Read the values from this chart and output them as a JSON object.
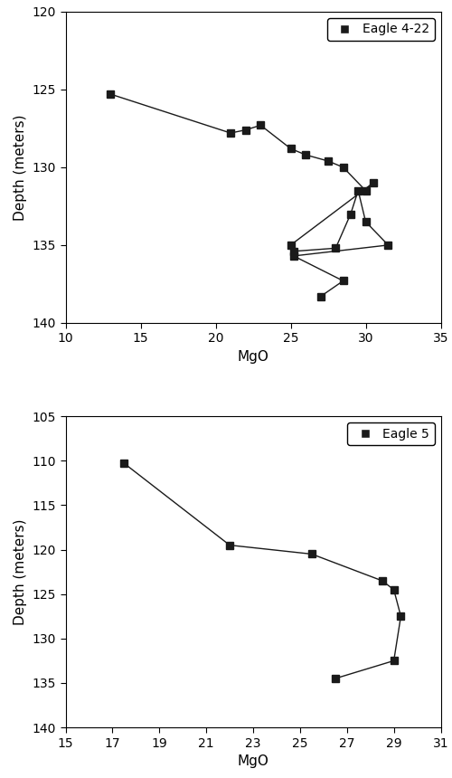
{
  "eagle422": {
    "label": "Eagle 4-22",
    "mgo_seq": [
      13.0,
      21.0,
      22.0,
      23.0,
      25.0,
      26.0,
      27.5,
      28.5,
      30.0,
      30.5,
      25.0,
      25.2,
      28.0,
      29.0,
      29.5,
      30.0,
      31.5,
      25.2,
      28.5,
      27.0
    ],
    "dep_seq": [
      125.3,
      127.8,
      127.6,
      127.3,
      128.8,
      129.2,
      129.6,
      130.0,
      131.5,
      131.0,
      135.0,
      135.4,
      135.2,
      133.0,
      131.5,
      133.5,
      135.0,
      135.7,
      137.3,
      138.3
    ],
    "xlim": [
      10,
      35
    ],
    "ylim": [
      140,
      120
    ],
    "xticks": [
      10,
      15,
      20,
      25,
      30,
      35
    ],
    "yticks": [
      120,
      125,
      130,
      135,
      140
    ]
  },
  "eagle5": {
    "label": "Eagle 5",
    "mgo_seq": [
      17.5,
      22.0,
      25.5,
      28.5,
      29.0,
      29.3,
      29.0,
      26.5
    ],
    "dep_seq": [
      110.3,
      119.5,
      120.5,
      123.5,
      124.5,
      127.5,
      132.5,
      134.5
    ],
    "xlim": [
      15,
      31
    ],
    "ylim": [
      140,
      105
    ],
    "xticks": [
      15,
      17,
      19,
      21,
      23,
      25,
      27,
      29,
      31
    ],
    "yticks": [
      105,
      110,
      115,
      120,
      125,
      130,
      135,
      140
    ]
  },
  "marker": "s",
  "marker_size": 6,
  "line_color": "#1a1a1a",
  "marker_color": "#1a1a1a",
  "xlabel": "MgO",
  "ylabel": "Depth (meters)",
  "figsize": [
    5.0,
    8.6
  ],
  "dpi": 100
}
